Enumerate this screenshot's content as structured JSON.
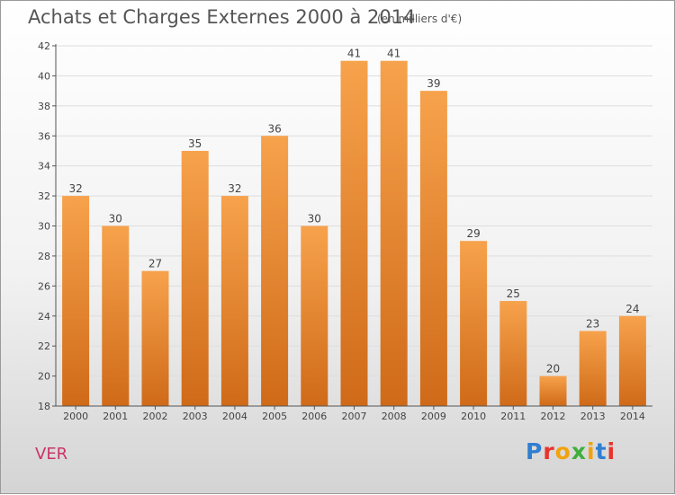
{
  "header": {
    "title": "Achats et Charges Externes 2000 à 2014",
    "subtitle": "(en milliers d'€)"
  },
  "footer": {
    "commune": "VER",
    "logo": "Proxiti"
  },
  "colors": {
    "bar_top": "#f7a24c",
    "bar_bottom": "#cf6a18",
    "axis": "#555555",
    "grid": "#dddddd",
    "commune": "#cc3366"
  },
  "chart_data": {
    "type": "bar",
    "title": "Achats et Charges Externes 2000 à 2014",
    "subtitle": "(en milliers d'€)",
    "xlabel": "",
    "ylabel": "",
    "categories": [
      "2000",
      "2001",
      "2002",
      "2003",
      "2004",
      "2005",
      "2006",
      "2007",
      "2008",
      "2009",
      "2010",
      "2011",
      "2012",
      "2013",
      "2014"
    ],
    "values": [
      32,
      30,
      27,
      35,
      32,
      36,
      30,
      41,
      41,
      39,
      29,
      25,
      20,
      23,
      24
    ],
    "ylim": [
      18,
      42
    ],
    "yticks": [
      18,
      20,
      22,
      24,
      26,
      28,
      30,
      32,
      34,
      36,
      38,
      40,
      42
    ],
    "grid": true,
    "legend": "none"
  }
}
